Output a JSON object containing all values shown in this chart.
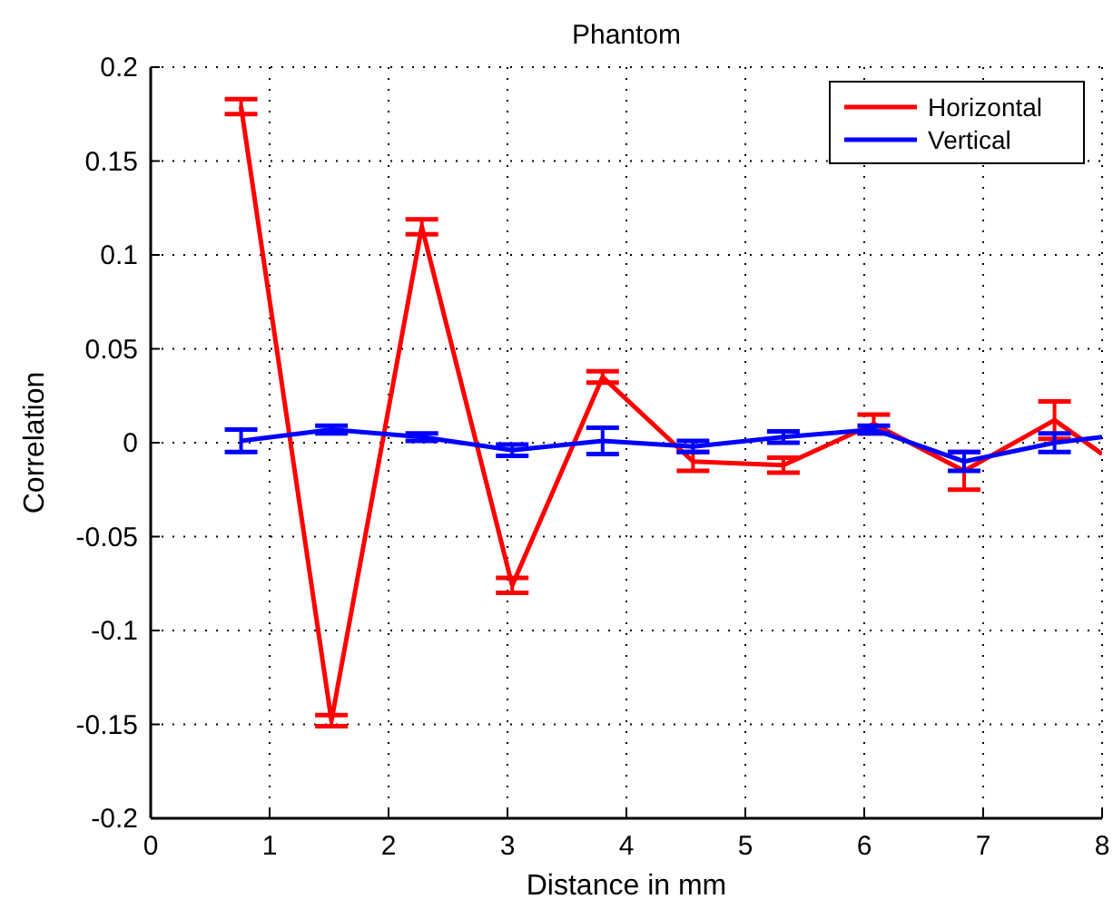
{
  "chart_data": {
    "type": "line",
    "title": "Phantom",
    "xlabel": "Distance in mm",
    "ylabel": "Correlation",
    "x": [
      0.76,
      1.52,
      2.28,
      3.04,
      3.8,
      4.56,
      5.32,
      6.08,
      6.84,
      7.6,
      8
    ],
    "xlim": [
      0,
      8
    ],
    "xticks": [
      0,
      1,
      2,
      3,
      4,
      5,
      6,
      7,
      8
    ],
    "ylim": [
      -0.2,
      0.2
    ],
    "yticks": [
      -0.2,
      -0.15,
      -0.1,
      -0.05,
      0,
      0.05,
      0.1,
      0.15,
      0.2
    ],
    "grid": true,
    "legend": "top right",
    "marker": "none",
    "line_style": "solid",
    "series": [
      {
        "name": "Horizontal",
        "color": "#ff0000",
        "values": [
          0.179,
          -0.148,
          0.115,
          -0.076,
          0.035,
          -0.01,
          -0.012,
          0.01,
          -0.015,
          0.012,
          -0.006
        ],
        "errors": [
          0.004,
          0.003,
          0.004,
          0.004,
          0.003,
          0.005,
          0.004,
          0.005,
          0.01,
          0.01,
          null
        ]
      },
      {
        "name": "Vertical",
        "color": "#0000ff",
        "values": [
          0.001,
          0.007,
          0.003,
          -0.004,
          0.001,
          -0.002,
          0.003,
          0.007,
          -0.01,
          0,
          0.003
        ],
        "errors": [
          0.006,
          0.002,
          0.002,
          0.003,
          0.007,
          0.003,
          0.003,
          0.002,
          0.005,
          0.005,
          null
        ]
      }
    ]
  }
}
